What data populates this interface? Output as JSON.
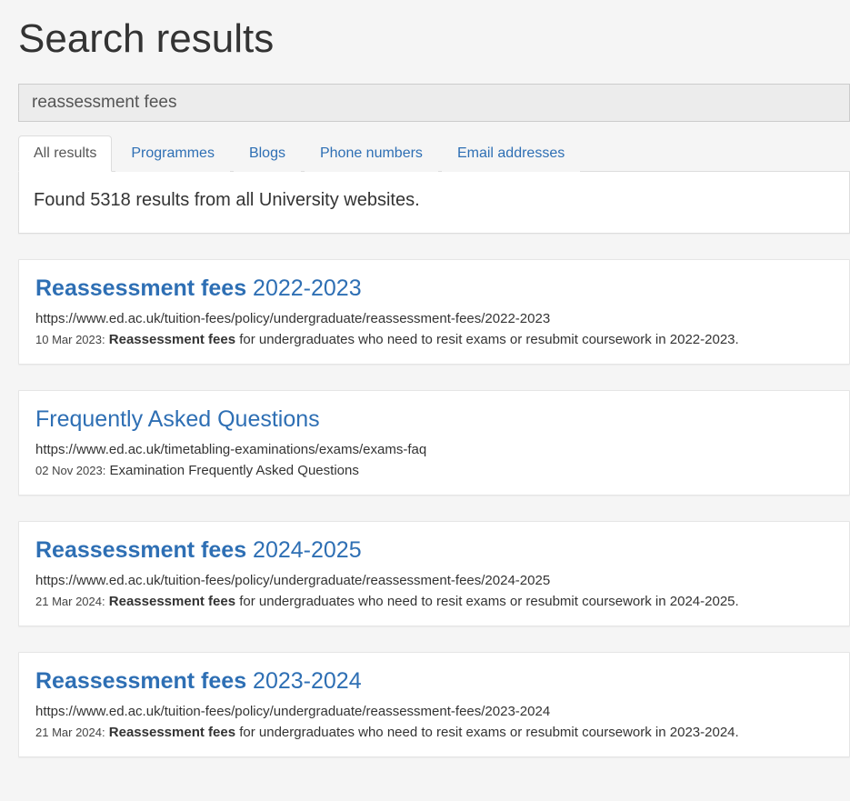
{
  "page": {
    "title": "Search results"
  },
  "search": {
    "value": "reassessment fees"
  },
  "tabs": [
    {
      "label": "All results",
      "active": true
    },
    {
      "label": "Programmes",
      "active": false
    },
    {
      "label": "Blogs",
      "active": false
    },
    {
      "label": "Phone numbers",
      "active": false
    },
    {
      "label": "Email addresses",
      "active": false
    }
  ],
  "summary": {
    "text": "Found 5318 results from all University websites."
  },
  "results": [
    {
      "title_bold": "Reassessment fees",
      "title_rest": " 2022-2023",
      "title_style": "split",
      "url": "https://www.ed.ac.uk/tuition-fees/policy/undergraduate/reassessment-fees/2022-2023",
      "date": "10 Mar 2023:",
      "snippet_bold": "Reassessment fees",
      "snippet_rest": " for undergraduates who need to resit exams or resubmit coursework in 2022-2023."
    },
    {
      "title_plain": "Frequently Asked Questions",
      "title_style": "plain",
      "url": "https://www.ed.ac.uk/timetabling-examinations/exams/exams-faq",
      "date": "02 Nov 2023:",
      "snippet_plain": "Examination Frequently Asked Questions"
    },
    {
      "title_bold": "Reassessment fees",
      "title_rest": " 2024-2025",
      "title_style": "split",
      "url": "https://www.ed.ac.uk/tuition-fees/policy/undergraduate/reassessment-fees/2024-2025",
      "date": "21 Mar 2024:",
      "snippet_bold": "Reassessment fees",
      "snippet_rest": " for undergraduates who need to resit exams or resubmit coursework in 2024-2025."
    },
    {
      "title_bold": "Reassessment fees",
      "title_rest": " 2023-2024",
      "title_style": "split",
      "url": "https://www.ed.ac.uk/tuition-fees/policy/undergraduate/reassessment-fees/2023-2024",
      "date": "21 Mar 2024:",
      "snippet_bold": "Reassessment fees",
      "snippet_rest": " for undergraduates who need to resit exams or resubmit coursework in 2023-2024."
    }
  ],
  "colors": {
    "link": "#2e6fb4",
    "page_bg": "#f5f5f5",
    "card_bg": "#ffffff",
    "border": "#dddddd"
  }
}
